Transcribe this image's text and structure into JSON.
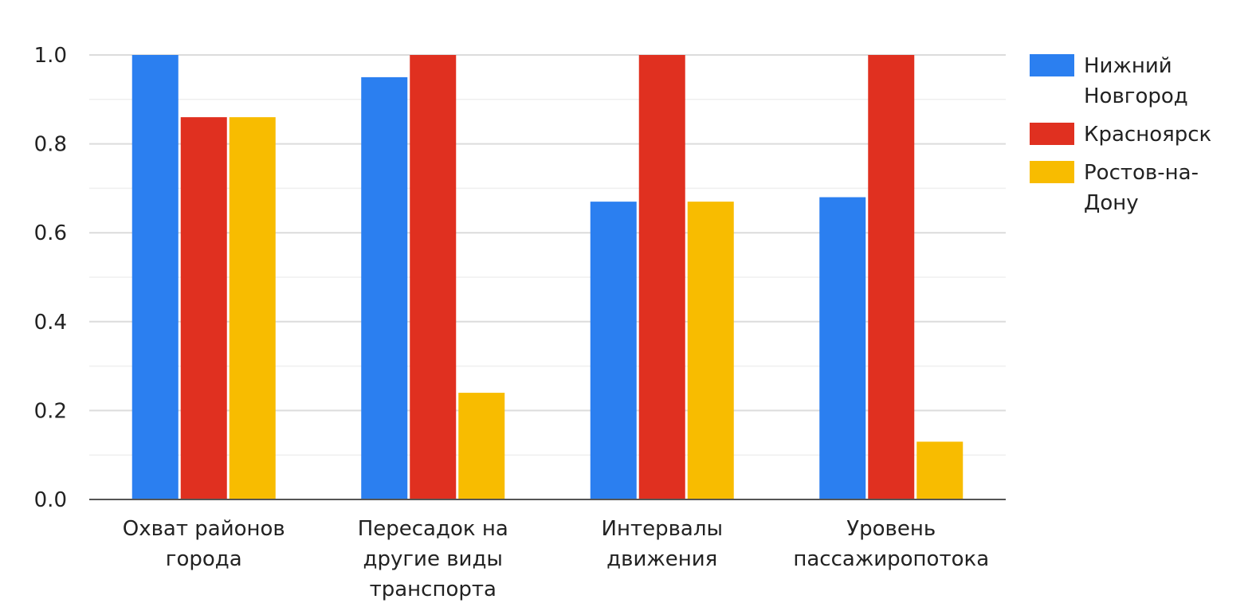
{
  "chart_data": {
    "type": "bar",
    "categories": [
      [
        "Охват районов",
        "города"
      ],
      [
        "Пересадок на",
        "другие виды",
        "транспорта"
      ],
      [
        "Интервалы",
        "движения"
      ],
      [
        "Уровень",
        "пассажиропотока"
      ]
    ],
    "series": [
      {
        "name": [
          "Нижний",
          "Новгород"
        ],
        "color": "#2b7ff0",
        "values": [
          1.0,
          0.95,
          0.67,
          0.68
        ]
      },
      {
        "name": [
          "Красноярск"
        ],
        "color": "#e03020",
        "values": [
          0.86,
          1.0,
          1.0,
          1.0
        ]
      },
      {
        "name": [
          "Ростов-на-",
          "Дону"
        ],
        "color": "#f8bc00",
        "values": [
          0.86,
          0.24,
          0.67,
          0.13
        ]
      }
    ],
    "y_ticks": [
      "0.0",
      "0.2",
      "0.4",
      "0.6",
      "0.8",
      "1.0"
    ],
    "ylim": [
      0,
      1.0
    ],
    "grid": true,
    "legend": "right",
    "title": "",
    "xlabel": "",
    "ylabel": ""
  }
}
